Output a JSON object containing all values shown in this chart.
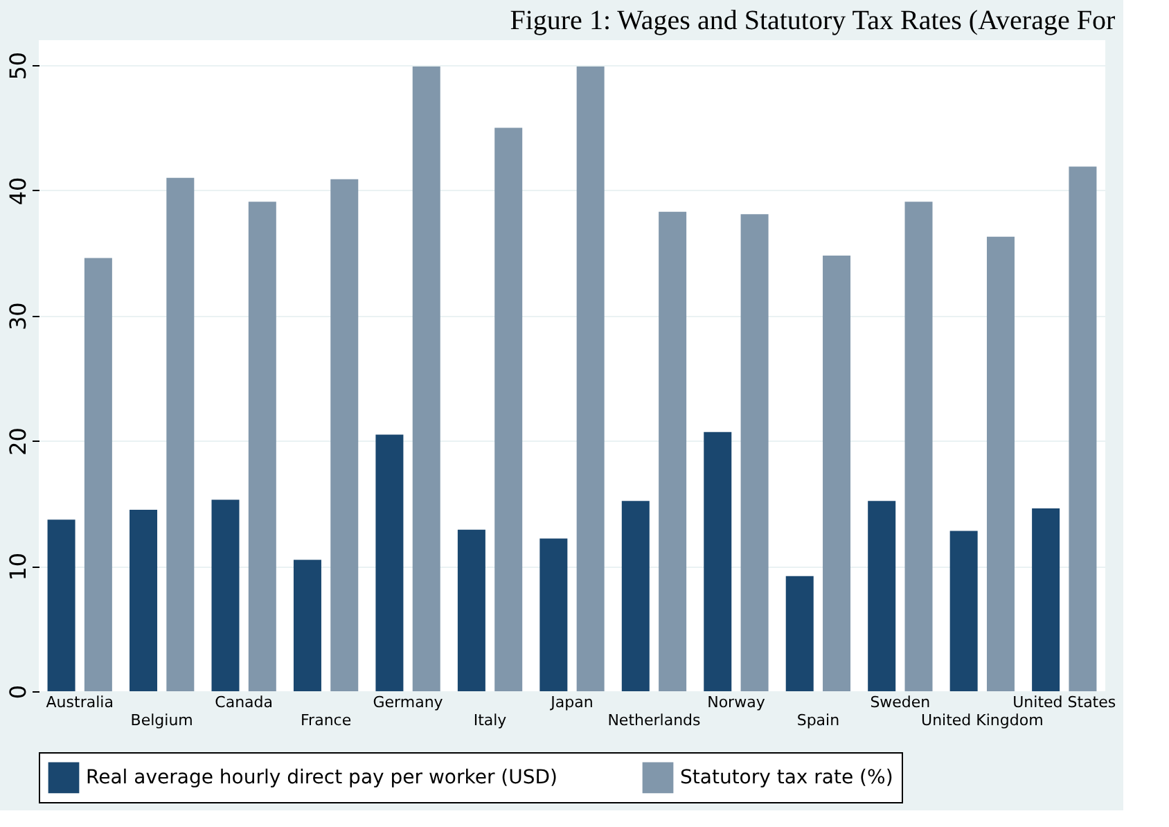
{
  "chart_data": {
    "type": "bar",
    "title": "Figure 1: Wages and Statutory Tax Rates (Average For",
    "categories": [
      "Australia",
      "Belgium",
      "Canada",
      "France",
      "Germany",
      "Italy",
      "Japan",
      "Netherlands",
      "Norway",
      "Spain",
      "Sweden",
      "United Kingdom",
      "United States"
    ],
    "series": [
      {
        "name": "Real average hourly direct pay per worker (USD)",
        "color": "#1a476f",
        "values": [
          13.7,
          14.5,
          15.3,
          10.5,
          20.5,
          12.9,
          12.2,
          15.2,
          20.7,
          9.2,
          15.2,
          12.8,
          14.6
        ]
      },
      {
        "name": "Statutory tax rate (%)",
        "color": "#8197ab",
        "values": [
          34.6,
          41.0,
          39.1,
          40.9,
          49.9,
          45.0,
          49.9,
          38.3,
          38.1,
          34.8,
          39.1,
          36.3,
          41.9
        ]
      }
    ],
    "ylim": [
      0,
      52
    ],
    "yticks": [
      0,
      10,
      20,
      30,
      40,
      50
    ],
    "grid": "y",
    "legend": "bottom"
  }
}
